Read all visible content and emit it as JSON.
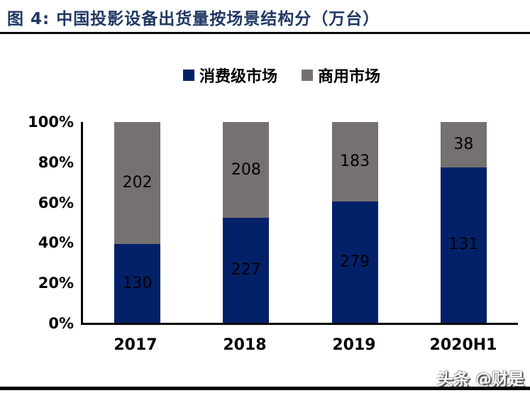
{
  "figure": {
    "title": "图 4: 中国投影设备出货量按场景结构分（万台）",
    "watermark": "头条 @财是"
  },
  "colors": {
    "title_text": "#1f3864",
    "consumer_series": "#032169",
    "commercial_series": "#767171",
    "axis": "#000000",
    "value_label": "#000000",
    "rule": "#000000"
  },
  "chart_data": {
    "type": "bar",
    "subtype": "stacked-100-percent",
    "title": "中国投影设备出货量按场景结构分（万台）",
    "categories": [
      "2017",
      "2018",
      "2019",
      "2020H1"
    ],
    "series": [
      {
        "name": "消费级市场",
        "color": "#032169",
        "values": [
          130,
          227,
          279,
          131
        ]
      },
      {
        "name": "商用市场",
        "color": "#767171",
        "values": [
          202,
          208,
          183,
          38
        ]
      }
    ],
    "y_tick_labels": [
      "100%",
      "80%",
      "60%",
      "40%",
      "20%",
      "0%"
    ],
    "ylim": [
      0,
      100
    ],
    "xlabel": "",
    "ylabel": "",
    "legend_position": "top-center",
    "grid": false,
    "bar_value_labels_shown": true
  }
}
